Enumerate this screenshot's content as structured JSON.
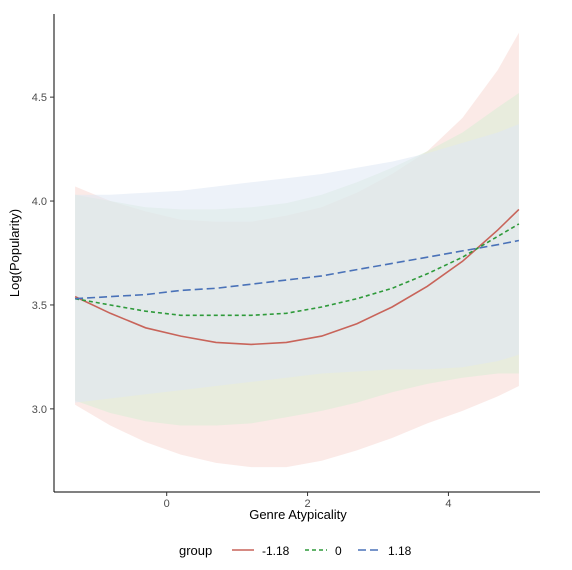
{
  "chart_data": {
    "type": "line",
    "title": "",
    "xlabel": "Genre Atypicality",
    "ylabel": "Log(Popularity)",
    "xlim": [
      -1.6,
      5.3
    ],
    "ylim": [
      2.6,
      4.9
    ],
    "x_ticks": [
      0,
      2,
      4
    ],
    "x_tick_labels": [
      "0",
      "2",
      "4"
    ],
    "y_ticks": [
      3.0,
      3.5,
      4.0,
      4.5
    ],
    "y_tick_labels": [
      "3.0",
      "3.5",
      "4.0",
      "4.5"
    ],
    "grid": false,
    "legend": {
      "title": "group",
      "position": "bottom",
      "entries": [
        "-1.18",
        "0",
        "1.18"
      ]
    },
    "series": [
      {
        "name": "-1.18",
        "color": "#c8645a",
        "dash": "solid",
        "fill": "#f8d8d4",
        "x": [
          -1.3,
          -0.8,
          -0.3,
          0.2,
          0.7,
          1.2,
          1.7,
          2.2,
          2.7,
          3.2,
          3.7,
          4.2,
          4.7,
          5.0
        ],
        "y": [
          3.54,
          3.46,
          3.39,
          3.35,
          3.32,
          3.31,
          3.32,
          3.35,
          3.41,
          3.49,
          3.59,
          3.71,
          3.86,
          3.96
        ],
        "lower": [
          3.02,
          2.92,
          2.84,
          2.78,
          2.74,
          2.72,
          2.72,
          2.75,
          2.8,
          2.86,
          2.93,
          2.99,
          3.06,
          3.11
        ],
        "upper": [
          4.07,
          4.0,
          3.95,
          3.91,
          3.9,
          3.9,
          3.93,
          3.97,
          4.04,
          4.13,
          4.24,
          4.4,
          4.63,
          4.81
        ]
      },
      {
        "name": "0",
        "color": "#2e9a3a",
        "dash": "dashed",
        "fill": "#d8ecd6",
        "x": [
          -1.3,
          -0.8,
          -0.3,
          0.2,
          0.7,
          1.2,
          1.7,
          2.2,
          2.7,
          3.2,
          3.7,
          4.2,
          4.7,
          5.0
        ],
        "y": [
          3.53,
          3.5,
          3.47,
          3.45,
          3.45,
          3.45,
          3.46,
          3.49,
          3.53,
          3.58,
          3.65,
          3.73,
          3.83,
          3.89
        ],
        "lower": [
          3.04,
          2.98,
          2.94,
          2.92,
          2.92,
          2.93,
          2.96,
          2.99,
          3.03,
          3.08,
          3.12,
          3.15,
          3.17,
          3.17
        ],
        "upper": [
          4.03,
          4.0,
          3.97,
          3.96,
          3.96,
          3.97,
          3.99,
          4.03,
          4.09,
          4.16,
          4.24,
          4.33,
          4.45,
          4.52
        ]
      },
      {
        "name": "1.18",
        "color": "#4a72b8",
        "dash": "longdash",
        "fill": "#dfe8f4",
        "x": [
          -1.3,
          -0.8,
          -0.3,
          0.2,
          0.7,
          1.2,
          1.7,
          2.2,
          2.7,
          3.2,
          3.7,
          4.2,
          4.7,
          5.0
        ],
        "y": [
          3.53,
          3.54,
          3.55,
          3.57,
          3.58,
          3.6,
          3.62,
          3.64,
          3.67,
          3.7,
          3.73,
          3.76,
          3.79,
          3.81
        ],
        "lower": [
          3.03,
          3.05,
          3.07,
          3.09,
          3.11,
          3.13,
          3.15,
          3.17,
          3.18,
          3.19,
          3.19,
          3.2,
          3.23,
          3.26
        ],
        "upper": [
          4.03,
          4.03,
          4.04,
          4.05,
          4.07,
          4.09,
          4.11,
          4.13,
          4.16,
          4.19,
          4.23,
          4.28,
          4.33,
          4.37
        ]
      }
    ]
  }
}
